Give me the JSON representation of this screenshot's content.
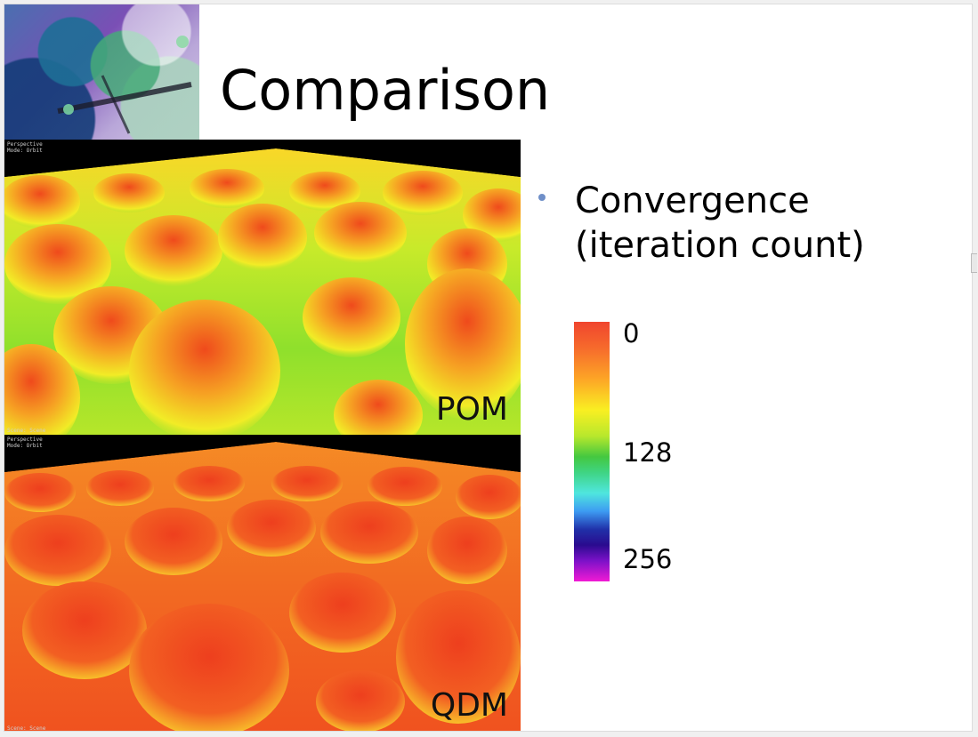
{
  "slide": {
    "title": "Comparison",
    "bullet": {
      "line1": "Convergence",
      "line2": "(iteration count)",
      "bullet_color": "#6f8fc8"
    },
    "colorbar": {
      "ticks": [
        "0",
        "128",
        "256"
      ],
      "gradient_stops": [
        "#f0452e",
        "#fda526",
        "#f9ef22",
        "#44c840",
        "#4fe6de",
        "#3d9bf2",
        "#2a0b8f",
        "#f01ad4"
      ]
    },
    "renders": [
      {
        "label": "POM",
        "caption_line1": "Perspective",
        "caption_line2": "Mode: Orbit",
        "scene_caption": "Scene: Scene",
        "dominant_colors": [
          "#f2561c",
          "#f6e924",
          "#7fd62d"
        ]
      },
      {
        "label": "QDM",
        "caption_line1": "Perspective",
        "caption_line2": "Mode: Orbit",
        "scene_caption": "Scene: Scene",
        "dominant_colors": [
          "#f0451f",
          "#f58a25",
          "#f8e22b"
        ]
      }
    ],
    "decoration_icon": "abstract-flower-logo"
  }
}
